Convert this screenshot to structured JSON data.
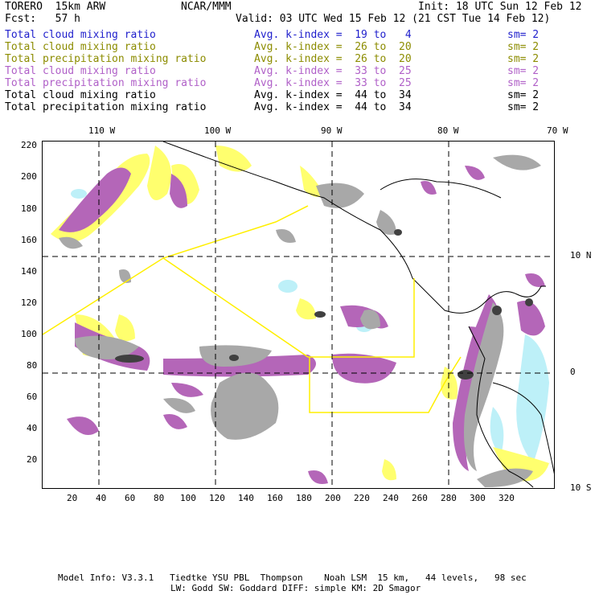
{
  "header": {
    "model": "TORERO  15km ARW",
    "org": "NCAR/MMM",
    "init": "Init: 18 UTC Sun 12 Feb 12",
    "fcst": "Fcst:   57 h",
    "valid": "Valid: 03 UTC Wed 15 Feb 12 (21 CST Tue 14 Feb 12)"
  },
  "legend": [
    {
      "field": "Total cloud mixing ratio",
      "range": "Avg. k-index =  19 to   4",
      "sm": "sm= 2",
      "color": "#1f1fcc"
    },
    {
      "field": "Total cloud mixing ratio",
      "range": "Avg. k-index =  26 to  20",
      "sm": "sm= 2",
      "color": "#8c8c00"
    },
    {
      "field": "Total precipitation mixing ratio",
      "range": "Avg. k-index =  26 to  20",
      "sm": "sm= 2",
      "color": "#8c8c00"
    },
    {
      "field": "Total cloud mixing ratio",
      "range": "Avg. k-index =  33 to  25",
      "sm": "sm= 2",
      "color": "#b060c8"
    },
    {
      "field": "Total precipitation mixing ratio",
      "range": "Avg. k-index =  33 to  25",
      "sm": "sm= 2",
      "color": "#b060c8"
    },
    {
      "field": "Total cloud mixing ratio",
      "range": "Avg. k-index =  44 to  34",
      "sm": "sm= 2",
      "color": "#000000"
    },
    {
      "field": "Total precipitation mixing ratio",
      "range": "Avg. k-index =  44 to  34",
      "sm": "sm= 2",
      "color": "#000000"
    }
  ],
  "map": {
    "lon_labels": [
      "110 W",
      "100 W",
      "90 W",
      "80 W",
      "70 W"
    ],
    "lat_labels": [
      "10 N",
      "0",
      "10 S"
    ],
    "y_ticks": [
      "220",
      "200",
      "180",
      "160",
      "140",
      "120",
      "100",
      "80",
      "60",
      "40",
      "20"
    ],
    "x_ticks": [
      "20",
      "40",
      "60",
      "80",
      "100",
      "120",
      "140",
      "160",
      "180",
      "200",
      "220",
      "240",
      "260",
      "280",
      "300",
      "320"
    ],
    "colors": {
      "cyan": "#bdf0f8",
      "yellow": "#ffff6e",
      "purple": "#b466b8",
      "gray": "#a8a8a8",
      "dark": "#404040",
      "coast": "#000000",
      "domain_box": "#ffef00",
      "grid": "#000000"
    }
  },
  "footer": {
    "line1": "Model Info: V3.3.1   Tiedtke YSU PBL  Thompson    Noah LSM  15 km,   44 levels,   98 sec",
    "line2": "LW: Godd SW: Goddard DIFF: simple KM: 2D Smagor"
  }
}
